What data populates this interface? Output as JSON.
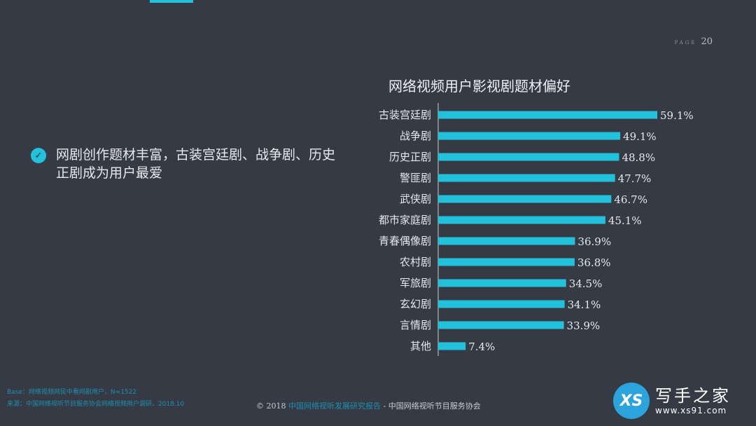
{
  "page": {
    "label": "PAGE",
    "number": "20"
  },
  "point": {
    "text": "网剧创作题材丰富，古装宫廷剧、战争剧、历史正剧成为用户最爱"
  },
  "footer": {
    "note": "Base：网络视频网民中看网剧用户，N=1522",
    "source": "来源：中国网络视听节目服务协会网络视频用户调研，2018.10",
    "copyright_prefix": "© 2018 ",
    "copyright_highlight": "中国网络视听发展研究报告",
    "copyright_suffix": " - 中国网络视听节目服务协会"
  },
  "watermark": {
    "logo": "XS",
    "name": "写手之家",
    "url": "www.xs91.com"
  },
  "colors": {
    "background": "#353a45",
    "bar": "#22c1dc",
    "text": "#e6e8ec"
  },
  "chart_data": {
    "type": "bar",
    "orientation": "horizontal",
    "title": "网络视频用户影视剧题材偏好",
    "categories": [
      "古装宫廷剧",
      "战争剧",
      "历史正剧",
      "警匪剧",
      "武侠剧",
      "都市家庭剧",
      "青春偶像剧",
      "农村剧",
      "军旅剧",
      "玄幻剧",
      "言情剧",
      "其他"
    ],
    "values": [
      59.1,
      49.1,
      48.8,
      47.7,
      46.7,
      45.1,
      36.9,
      36.8,
      34.5,
      34.1,
      33.9,
      7.4
    ],
    "value_labels": [
      "59.1%",
      "49.1%",
      "48.8%",
      "47.7%",
      "46.7%",
      "45.1%",
      "36.9%",
      "36.8%",
      "34.5%",
      "34.1%",
      "33.9%",
      "7.4%"
    ],
    "unit": "%",
    "xlim": [
      0,
      59.1
    ],
    "grid": false,
    "legend": "none"
  }
}
